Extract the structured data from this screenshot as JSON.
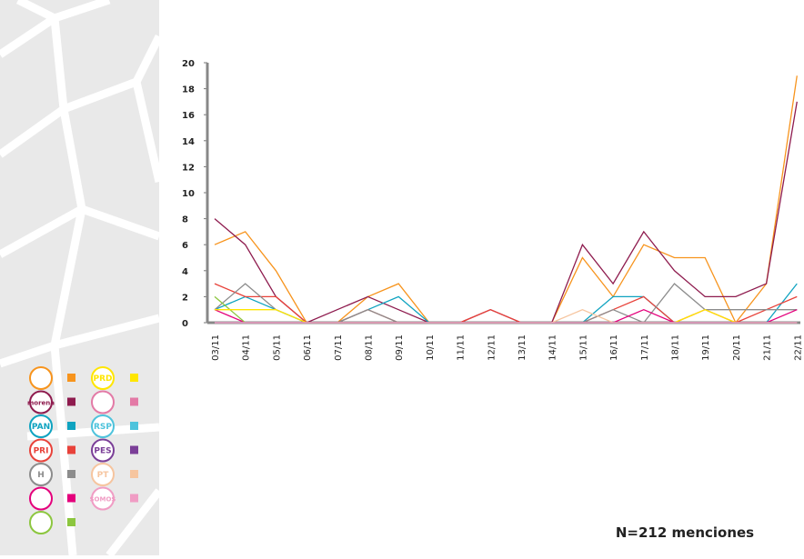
{
  "chart_data": {
    "type": "line",
    "categories": [
      "03/11",
      "04/11",
      "05/11",
      "06/11",
      "07/11",
      "08/11",
      "09/11",
      "10/11",
      "11/11",
      "12/11",
      "13/11",
      "14/11",
      "15/11",
      "16/11",
      "17/11",
      "18/11",
      "19/11",
      "20/11",
      "21/11",
      "22/11"
    ],
    "ylim": [
      0,
      20
    ],
    "yticks": [
      0,
      2,
      4,
      6,
      8,
      10,
      12,
      14,
      16,
      18,
      20
    ],
    "series": [
      {
        "color": "#f7941d",
        "values": [
          6,
          7,
          4,
          0,
          0,
          2,
          3,
          0,
          0,
          0,
          0,
          0,
          5,
          2,
          6,
          5,
          5,
          0,
          3,
          19
        ]
      },
      {
        "name": "morena",
        "color": "#8e1b4e",
        "values": [
          8,
          6,
          2,
          0,
          1,
          2,
          1,
          0,
          0,
          1,
          0,
          0,
          6,
          3,
          7,
          4,
          2,
          2,
          3,
          17
        ]
      },
      {
        "name": "PAN",
        "color": "#0fa3c0",
        "values": [
          1,
          2,
          1,
          0,
          0,
          1,
          2,
          0,
          0,
          0,
          0,
          0,
          0,
          2,
          2,
          0,
          0,
          0,
          0,
          3
        ]
      },
      {
        "name": "PRI",
        "color": "#e8423a",
        "values": [
          3,
          2,
          2,
          0,
          0,
          1,
          0,
          0,
          0,
          1,
          0,
          0,
          0,
          1,
          2,
          0,
          1,
          0,
          1,
          2
        ]
      },
      {
        "name": "H",
        "color": "#8c8c8c",
        "values": [
          1,
          3,
          1,
          0,
          0,
          1,
          0,
          0,
          0,
          0,
          0,
          0,
          0,
          1,
          0,
          3,
          1,
          1,
          1,
          1
        ]
      },
      {
        "color": "#e4007c",
        "values": [
          1,
          0,
          0,
          0,
          0,
          0,
          0,
          0,
          0,
          0,
          0,
          0,
          0,
          0,
          1,
          0,
          0,
          0,
          0,
          1
        ]
      },
      {
        "color": "#8cc63f",
        "values": [
          2,
          0,
          0,
          0,
          0,
          0,
          0,
          0,
          0,
          0,
          0,
          0,
          0,
          0,
          0,
          0,
          0,
          0,
          0,
          0
        ]
      },
      {
        "name": "PRD",
        "color": "#ffe600",
        "values": [
          1,
          1,
          1,
          0,
          0,
          0,
          0,
          0,
          0,
          0,
          0,
          0,
          0,
          0,
          0,
          0,
          1,
          0,
          0,
          0
        ]
      },
      {
        "color": "#e37aa6",
        "values": [
          0,
          0,
          0,
          0,
          0,
          0,
          0,
          0,
          0,
          0,
          0,
          0,
          0,
          0,
          0,
          0,
          0,
          0,
          0,
          0
        ]
      },
      {
        "name": "RSP",
        "color": "#4ec3dc",
        "values": [
          0,
          0,
          0,
          0,
          0,
          0,
          0,
          0,
          0,
          0,
          0,
          0,
          0,
          0,
          0,
          0,
          0,
          0,
          0,
          0
        ]
      },
      {
        "name": "PES",
        "color": "#7b3f98",
        "values": [
          0,
          0,
          0,
          0,
          0,
          0,
          0,
          0,
          0,
          0,
          0,
          0,
          0,
          0,
          0,
          0,
          0,
          0,
          0,
          0
        ]
      },
      {
        "name": "PT",
        "color": "#f6c59f",
        "values": [
          0,
          0,
          0,
          0,
          0,
          0,
          0,
          0,
          0,
          0,
          0,
          0,
          1,
          0,
          0,
          0,
          0,
          0,
          0,
          0
        ]
      },
      {
        "name": "SOMOS",
        "color": "#f09cc4",
        "values": [
          0,
          0,
          0,
          0,
          0,
          0,
          0,
          0,
          0,
          0,
          0,
          0,
          0,
          0,
          0,
          0,
          0,
          0,
          0,
          0
        ]
      }
    ],
    "annotation": "N=212 menciones"
  }
}
